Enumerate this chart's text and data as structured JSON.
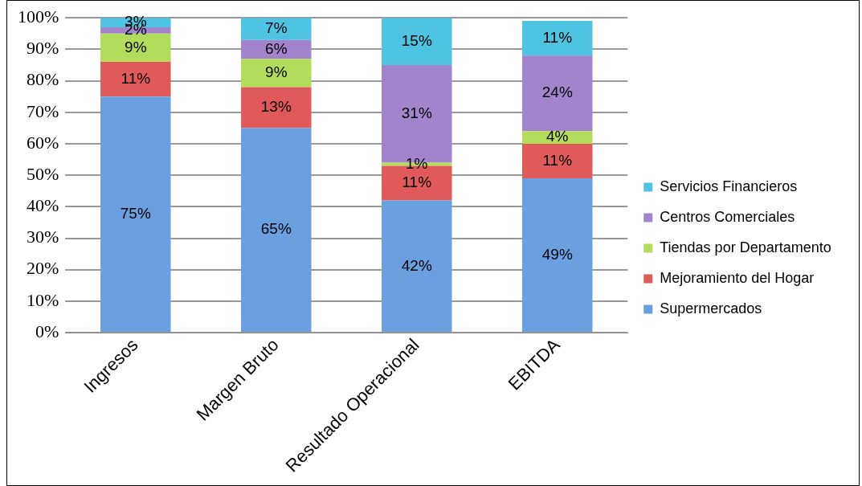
{
  "chart_data": {
    "type": "bar",
    "stacked": true,
    "categories": [
      "Ingresos",
      "Margen Bruto",
      "Resultado Operacional",
      "EBITDA"
    ],
    "series": [
      {
        "name": "Supermercados",
        "color": "#6a9fe0",
        "values": [
          75,
          65,
          42,
          49
        ],
        "value_labels": [
          "75%",
          "65%",
          "42%",
          "49%"
        ]
      },
      {
        "name": "Mejoramiento del Hogar",
        "color": "#e05a5a",
        "values": [
          11,
          13,
          11,
          11
        ],
        "value_labels": [
          "11%",
          "13%",
          "11%",
          "11%"
        ]
      },
      {
        "name": "Tiendas por Departamento",
        "color": "#b4dc5c",
        "values": [
          9,
          9,
          1,
          4
        ],
        "value_labels": [
          "9%",
          "9%",
          "1%",
          "4%"
        ]
      },
      {
        "name": "Centros Comerciales",
        "color": "#a184cc",
        "values": [
          2,
          6,
          31,
          24
        ],
        "value_labels": [
          "2%",
          "6%",
          "31%",
          "24%"
        ]
      },
      {
        "name": "Servicios Financieros",
        "color": "#4ec4e2",
        "values": [
          3,
          7,
          15,
          11
        ],
        "value_labels": [
          "3%",
          "7%",
          "15%",
          "11%"
        ]
      }
    ],
    "ylim": [
      0,
      100
    ],
    "yticks": [
      {
        "value": 0,
        "label": "0%"
      },
      {
        "value": 10,
        "label": "10%"
      },
      {
        "value": 20,
        "label": "20%"
      },
      {
        "value": 30,
        "label": "30%"
      },
      {
        "value": 40,
        "label": "40%"
      },
      {
        "value": 50,
        "label": "50%"
      },
      {
        "value": 60,
        "label": "60%"
      },
      {
        "value": 70,
        "label": "70%"
      },
      {
        "value": 80,
        "label": "80%"
      },
      {
        "value": 90,
        "label": "90%"
      },
      {
        "value": 100,
        "label": "100%"
      }
    ],
    "grid": "y",
    "legend": "right"
  }
}
